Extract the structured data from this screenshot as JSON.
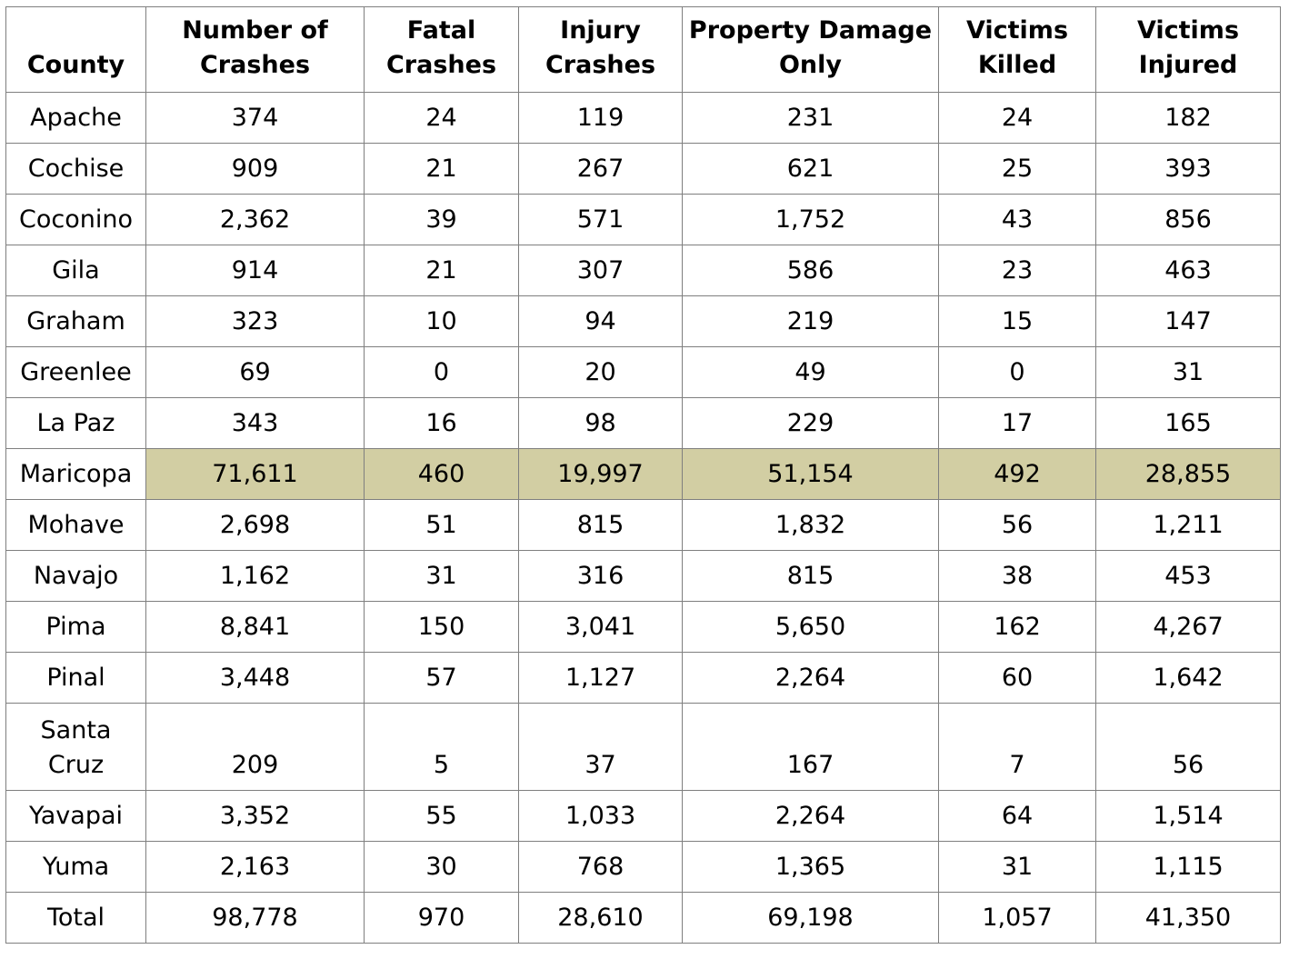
{
  "colors": {
    "border": "#7f7f7f",
    "highlight": "#d2cea3"
  },
  "headers": [
    [
      "County"
    ],
    [
      "Number of",
      "Crashes"
    ],
    [
      "Fatal",
      "Crashes"
    ],
    [
      "Injury",
      "Crashes"
    ],
    [
      "Property Damage",
      "Only"
    ],
    [
      "Victims",
      "Killed"
    ],
    [
      "Victims",
      "Injured"
    ]
  ],
  "rows": [
    {
      "county": [
        "Apache"
      ],
      "values": [
        "374",
        "24",
        "119",
        "231",
        "24",
        "182"
      ]
    },
    {
      "county": [
        "Cochise"
      ],
      "values": [
        "909",
        "21",
        "267",
        "621",
        "25",
        "393"
      ]
    },
    {
      "county": [
        "Coconino"
      ],
      "values": [
        "2,362",
        "39",
        "571",
        "1,752",
        "43",
        "856"
      ]
    },
    {
      "county": [
        "Gila"
      ],
      "values": [
        "914",
        "21",
        "307",
        "586",
        "23",
        "463"
      ]
    },
    {
      "county": [
        "Graham"
      ],
      "values": [
        "323",
        "10",
        "94",
        "219",
        "15",
        "147"
      ]
    },
    {
      "county": [
        "Greenlee"
      ],
      "values": [
        "69",
        "0",
        "20",
        "49",
        "0",
        "31"
      ]
    },
    {
      "county": [
        "La Paz"
      ],
      "values": [
        "343",
        "16",
        "98",
        "229",
        "17",
        "165"
      ]
    },
    {
      "county": [
        "Maricopa"
      ],
      "values": [
        "71,611",
        "460",
        "19,997",
        "51,154",
        "492",
        "28,855"
      ],
      "highlight": true
    },
    {
      "county": [
        "Mohave"
      ],
      "values": [
        "2,698",
        "51",
        "815",
        "1,832",
        "56",
        "1,211"
      ]
    },
    {
      "county": [
        "Navajo"
      ],
      "values": [
        "1,162",
        "31",
        "316",
        "815",
        "38",
        "453"
      ]
    },
    {
      "county": [
        "Pima"
      ],
      "values": [
        "8,841",
        "150",
        "3,041",
        "5,650",
        "162",
        "4,267"
      ]
    },
    {
      "county": [
        "Pinal"
      ],
      "values": [
        "3,448",
        "57",
        "1,127",
        "2,264",
        "60",
        "1,642"
      ]
    },
    {
      "county": [
        "Santa",
        "Cruz"
      ],
      "values": [
        "209",
        "5",
        "37",
        "167",
        "7",
        "56"
      ]
    },
    {
      "county": [
        "Yavapai"
      ],
      "values": [
        "3,352",
        "55",
        "1,033",
        "2,264",
        "64",
        "1,514"
      ]
    },
    {
      "county": [
        "Yuma"
      ],
      "values": [
        "2,163",
        "30",
        "768",
        "1,365",
        "31",
        "1,115"
      ]
    },
    {
      "county": [
        "Total"
      ],
      "values": [
        "98,778",
        "970",
        "28,610",
        "69,198",
        "1,057",
        "41,350"
      ]
    }
  ]
}
